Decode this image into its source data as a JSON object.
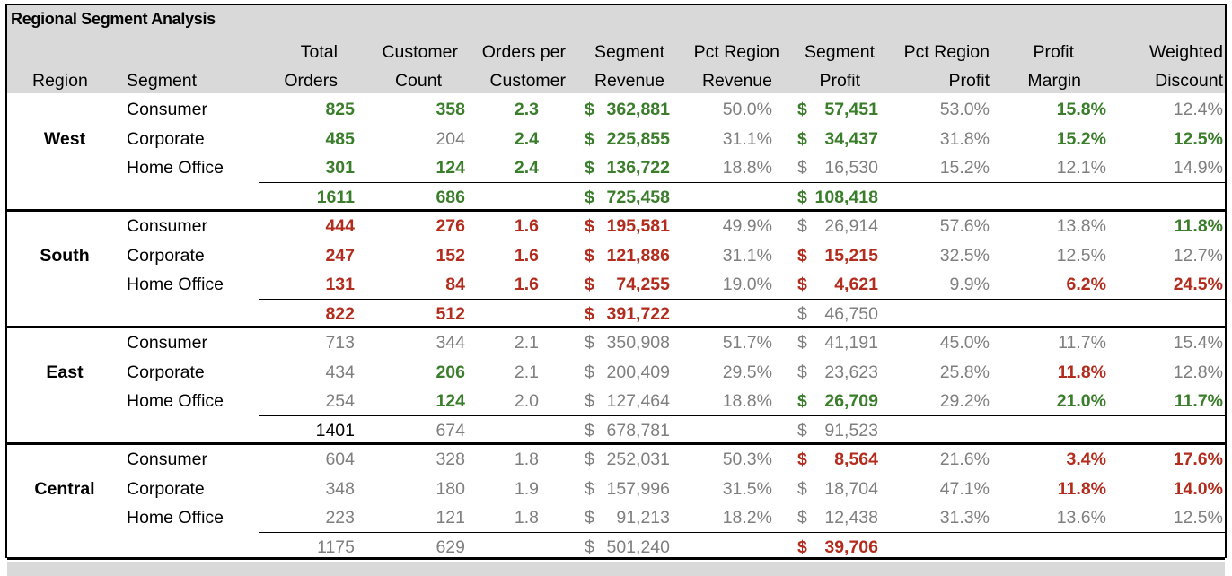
{
  "title": "Regional Segment Analysis",
  "headers": {
    "region": "Region",
    "segment": "Segment",
    "total_orders": [
      "Total",
      "Orders"
    ],
    "customer_count": [
      "Customer",
      "Count"
    ],
    "orders_per_customer": [
      "Orders per",
      "Customer"
    ],
    "segment_revenue": [
      "Segment",
      "Revenue"
    ],
    "pct_region_revenue": [
      "Pct Region",
      "Revenue"
    ],
    "segment_profit": [
      "Segment",
      "Profit"
    ],
    "pct_region_profit": [
      "Pct Region",
      "Profit"
    ],
    "profit_margin": [
      "Profit",
      "Margin"
    ],
    "weighted_discount": [
      "Weighted",
      "Discount"
    ]
  },
  "colors": {
    "header_bg": "#d9d9d9",
    "good": "#3a7d2a",
    "bad": "#b22d1e",
    "neutral": "#7f7f7f"
  },
  "regions": [
    {
      "name": "West",
      "rows": [
        {
          "segment": "Consumer",
          "orders": {
            "v": "825",
            "s": "good"
          },
          "customers": {
            "v": "358",
            "s": "good"
          },
          "opc": {
            "v": "2.3",
            "s": "good"
          },
          "revenue": {
            "cur": "$",
            "v": "362,881",
            "s": "good"
          },
          "pct_rev": {
            "v": "50.0%",
            "s": "neutral"
          },
          "profit": {
            "cur": "$",
            "v": "57,451",
            "s": "good"
          },
          "pct_profit": {
            "v": "53.0%",
            "s": "neutral"
          },
          "margin": {
            "v": "15.8%",
            "s": "good"
          },
          "discount": {
            "v": "12.4%",
            "s": "neutral"
          }
        },
        {
          "segment": "Corporate",
          "orders": {
            "v": "485",
            "s": "good"
          },
          "customers": {
            "v": "204",
            "s": "neutral"
          },
          "opc": {
            "v": "2.4",
            "s": "good"
          },
          "revenue": {
            "cur": "$",
            "v": "225,855",
            "s": "good"
          },
          "pct_rev": {
            "v": "31.1%",
            "s": "neutral"
          },
          "profit": {
            "cur": "$",
            "v": "34,437",
            "s": "good"
          },
          "pct_profit": {
            "v": "31.8%",
            "s": "neutral"
          },
          "margin": {
            "v": "15.2%",
            "s": "good"
          },
          "discount": {
            "v": "12.5%",
            "s": "good"
          }
        },
        {
          "segment": "Home Office",
          "orders": {
            "v": "301",
            "s": "good"
          },
          "customers": {
            "v": "124",
            "s": "good"
          },
          "opc": {
            "v": "2.4",
            "s": "good"
          },
          "revenue": {
            "cur": "$",
            "v": "136,722",
            "s": "good"
          },
          "pct_rev": {
            "v": "18.8%",
            "s": "neutral"
          },
          "profit": {
            "cur": "$",
            "v": "16,530",
            "s": "neutral"
          },
          "pct_profit": {
            "v": "15.2%",
            "s": "neutral"
          },
          "margin": {
            "v": "12.1%",
            "s": "neutral"
          },
          "discount": {
            "v": "14.9%",
            "s": "neutral"
          }
        }
      ],
      "total": {
        "orders": {
          "v": "1611",
          "s": "good"
        },
        "customers": {
          "v": "686",
          "s": "good"
        },
        "revenue": {
          "cur": "$",
          "v": "725,458",
          "s": "good"
        },
        "profit": {
          "cur": "$",
          "v": "108,418",
          "s": "good"
        }
      }
    },
    {
      "name": "South",
      "rows": [
        {
          "segment": "Consumer",
          "orders": {
            "v": "444",
            "s": "bad"
          },
          "customers": {
            "v": "276",
            "s": "bad"
          },
          "opc": {
            "v": "1.6",
            "s": "bad"
          },
          "revenue": {
            "cur": "$",
            "v": "195,581",
            "s": "bad"
          },
          "pct_rev": {
            "v": "49.9%",
            "s": "neutral"
          },
          "profit": {
            "cur": "$",
            "v": "26,914",
            "s": "neutral"
          },
          "pct_profit": {
            "v": "57.6%",
            "s": "neutral"
          },
          "margin": {
            "v": "13.8%",
            "s": "neutral"
          },
          "discount": {
            "v": "11.8%",
            "s": "good"
          }
        },
        {
          "segment": "Corporate",
          "orders": {
            "v": "247",
            "s": "bad"
          },
          "customers": {
            "v": "152",
            "s": "bad"
          },
          "opc": {
            "v": "1.6",
            "s": "bad"
          },
          "revenue": {
            "cur": "$",
            "v": "121,886",
            "s": "bad"
          },
          "pct_rev": {
            "v": "31.1%",
            "s": "neutral"
          },
          "profit": {
            "cur": "$",
            "v": "15,215",
            "s": "bad"
          },
          "pct_profit": {
            "v": "32.5%",
            "s": "neutral"
          },
          "margin": {
            "v": "12.5%",
            "s": "neutral"
          },
          "discount": {
            "v": "12.7%",
            "s": "neutral"
          }
        },
        {
          "segment": "Home Office",
          "orders": {
            "v": "131",
            "s": "bad"
          },
          "customers": {
            "v": "84",
            "s": "bad"
          },
          "opc": {
            "v": "1.6",
            "s": "bad"
          },
          "revenue": {
            "cur": "$",
            "v": "74,255",
            "s": "bad"
          },
          "pct_rev": {
            "v": "19.0%",
            "s": "neutral"
          },
          "profit": {
            "cur": "$",
            "v": "4,621",
            "s": "bad"
          },
          "pct_profit": {
            "v": "9.9%",
            "s": "neutral"
          },
          "margin": {
            "v": "6.2%",
            "s": "bad"
          },
          "discount": {
            "v": "24.5%",
            "s": "bad"
          }
        }
      ],
      "total": {
        "orders": {
          "v": "822",
          "s": "bad"
        },
        "customers": {
          "v": "512",
          "s": "bad"
        },
        "revenue": {
          "cur": "$",
          "v": "391,722",
          "s": "bad"
        },
        "profit": {
          "cur": "$",
          "v": "46,750",
          "s": "neutral"
        }
      }
    },
    {
      "name": "East",
      "rows": [
        {
          "segment": "Consumer",
          "orders": {
            "v": "713",
            "s": "neutral"
          },
          "customers": {
            "v": "344",
            "s": "neutral"
          },
          "opc": {
            "v": "2.1",
            "s": "neutral"
          },
          "revenue": {
            "cur": "$",
            "v": "350,908",
            "s": "neutral"
          },
          "pct_rev": {
            "v": "51.7%",
            "s": "neutral"
          },
          "profit": {
            "cur": "$",
            "v": "41,191",
            "s": "neutral"
          },
          "pct_profit": {
            "v": "45.0%",
            "s": "neutral"
          },
          "margin": {
            "v": "11.7%",
            "s": "neutral"
          },
          "discount": {
            "v": "15.4%",
            "s": "neutral"
          }
        },
        {
          "segment": "Corporate",
          "orders": {
            "v": "434",
            "s": "neutral"
          },
          "customers": {
            "v": "206",
            "s": "good"
          },
          "opc": {
            "v": "2.1",
            "s": "neutral"
          },
          "revenue": {
            "cur": "$",
            "v": "200,409",
            "s": "neutral"
          },
          "pct_rev": {
            "v": "29.5%",
            "s": "neutral"
          },
          "profit": {
            "cur": "$",
            "v": "23,623",
            "s": "neutral"
          },
          "pct_profit": {
            "v": "25.8%",
            "s": "neutral"
          },
          "margin": {
            "v": "11.8%",
            "s": "bad"
          },
          "discount": {
            "v": "12.8%",
            "s": "neutral"
          }
        },
        {
          "segment": "Home Office",
          "orders": {
            "v": "254",
            "s": "neutral"
          },
          "customers": {
            "v": "124",
            "s": "good"
          },
          "opc": {
            "v": "2.0",
            "s": "neutral"
          },
          "revenue": {
            "cur": "$",
            "v": "127,464",
            "s": "neutral"
          },
          "pct_rev": {
            "v": "18.8%",
            "s": "neutral"
          },
          "profit": {
            "cur": "$",
            "v": "26,709",
            "s": "good"
          },
          "pct_profit": {
            "v": "29.2%",
            "s": "neutral"
          },
          "margin": {
            "v": "21.0%",
            "s": "good"
          },
          "discount": {
            "v": "11.7%",
            "s": "good"
          }
        }
      ],
      "total": {
        "orders": {
          "v": "1401",
          "s": "black"
        },
        "customers": {
          "v": "674",
          "s": "neutral"
        },
        "revenue": {
          "cur": "$",
          "v": "678,781",
          "s": "neutral"
        },
        "profit": {
          "cur": "$",
          "v": "91,523",
          "s": "neutral"
        }
      }
    },
    {
      "name": "Central",
      "rows": [
        {
          "segment": "Consumer",
          "orders": {
            "v": "604",
            "s": "neutral"
          },
          "customers": {
            "v": "328",
            "s": "neutral"
          },
          "opc": {
            "v": "1.8",
            "s": "neutral"
          },
          "revenue": {
            "cur": "$",
            "v": "252,031",
            "s": "neutral"
          },
          "pct_rev": {
            "v": "50.3%",
            "s": "neutral"
          },
          "profit": {
            "cur": "$",
            "v": "8,564",
            "s": "bad"
          },
          "pct_profit": {
            "v": "21.6%",
            "s": "neutral"
          },
          "margin": {
            "v": "3.4%",
            "s": "bad"
          },
          "discount": {
            "v": "17.6%",
            "s": "bad"
          }
        },
        {
          "segment": "Corporate",
          "orders": {
            "v": "348",
            "s": "neutral"
          },
          "customers": {
            "v": "180",
            "s": "neutral"
          },
          "opc": {
            "v": "1.9",
            "s": "neutral"
          },
          "revenue": {
            "cur": "$",
            "v": "157,996",
            "s": "neutral"
          },
          "pct_rev": {
            "v": "31.5%",
            "s": "neutral"
          },
          "profit": {
            "cur": "$",
            "v": "18,704",
            "s": "neutral"
          },
          "pct_profit": {
            "v": "47.1%",
            "s": "neutral"
          },
          "margin": {
            "v": "11.8%",
            "s": "bad"
          },
          "discount": {
            "v": "14.0%",
            "s": "bad"
          }
        },
        {
          "segment": "Home Office",
          "orders": {
            "v": "223",
            "s": "neutral"
          },
          "customers": {
            "v": "121",
            "s": "neutral"
          },
          "opc": {
            "v": "1.8",
            "s": "neutral"
          },
          "revenue": {
            "cur": "$",
            "v": "91,213",
            "s": "neutral"
          },
          "pct_rev": {
            "v": "18.2%",
            "s": "neutral"
          },
          "profit": {
            "cur": "$",
            "v": "12,438",
            "s": "neutral"
          },
          "pct_profit": {
            "v": "31.3%",
            "s": "neutral"
          },
          "margin": {
            "v": "13.6%",
            "s": "neutral"
          },
          "discount": {
            "v": "12.5%",
            "s": "neutral"
          }
        }
      ],
      "total": {
        "orders": {
          "v": "1175",
          "s": "neutral"
        },
        "customers": {
          "v": "629",
          "s": "neutral"
        },
        "revenue": {
          "cur": "$",
          "v": "501,240",
          "s": "neutral"
        },
        "profit": {
          "cur": "$",
          "v": "39,706",
          "s": "bad"
        }
      }
    }
  ]
}
